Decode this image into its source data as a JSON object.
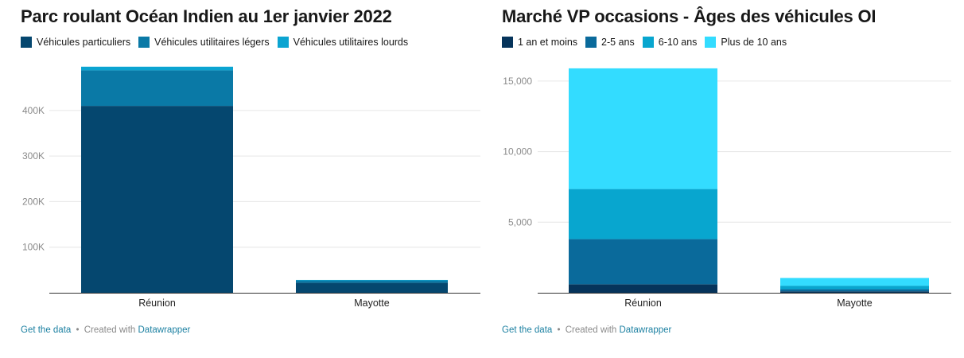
{
  "charts": [
    {
      "title": "Parc roulant Océan Indien au 1er janvier 2022",
      "chart_data": {
        "type": "bar",
        "stacked": true,
        "title": "Parc roulant Océan Indien au 1er janvier 2022",
        "xlabel": "",
        "ylabel": "",
        "categories": [
          "Réunion",
          "Mayotte"
        ],
        "series": [
          {
            "name": "Véhicules particuliers",
            "color": "#05476f",
            "values": [
              410000,
              22000
            ]
          },
          {
            "name": "Véhicules utilitaires légers",
            "color": "#0a79a6",
            "values": [
              78000,
              5000
            ]
          },
          {
            "name": "Véhicules utilitaires lourds",
            "color": "#0ba4d1",
            "values": [
              8000,
              1000
            ]
          }
        ],
        "ylim": [
          0,
          480000
        ],
        "yticks": [
          100000,
          200000,
          300000,
          400000
        ],
        "ytick_labels": [
          "100K",
          "200K",
          "300K",
          "400K"
        ],
        "grid": true,
        "legend": "top-left"
      },
      "footer": {
        "get_data": "Get the data",
        "sep": "•",
        "created": "Created with",
        "tool": "Datawrapper"
      }
    },
    {
      "title": "Marché VP occasions - Âges des véhicules OI",
      "chart_data": {
        "type": "bar",
        "stacked": true,
        "title": "Marché VP occasions - Âges des véhicules OI",
        "xlabel": "",
        "ylabel": "",
        "categories": [
          "Réunion",
          "Mayotte"
        ],
        "series": [
          {
            "name": "1 an et moins",
            "color": "#06345b",
            "values": [
              600,
              100
            ]
          },
          {
            "name": "2-5 ans",
            "color": "#0a6a9b",
            "values": [
              3200,
              150
            ]
          },
          {
            "name": "6-10 ans",
            "color": "#08a6cf",
            "values": [
              3550,
              250
            ]
          },
          {
            "name": "Plus de 10 ans",
            "color": "#33dcff",
            "values": [
              8550,
              550
            ]
          }
        ],
        "ylim": [
          0,
          15500
        ],
        "yticks": [
          5000,
          10000,
          15000
        ],
        "ytick_labels": [
          "5,000",
          "10,000",
          "15,000"
        ],
        "grid": true,
        "legend": "top-left"
      },
      "footer": {
        "get_data": "Get the data",
        "sep": "•",
        "created": "Created with",
        "tool": "Datawrapper"
      }
    }
  ]
}
